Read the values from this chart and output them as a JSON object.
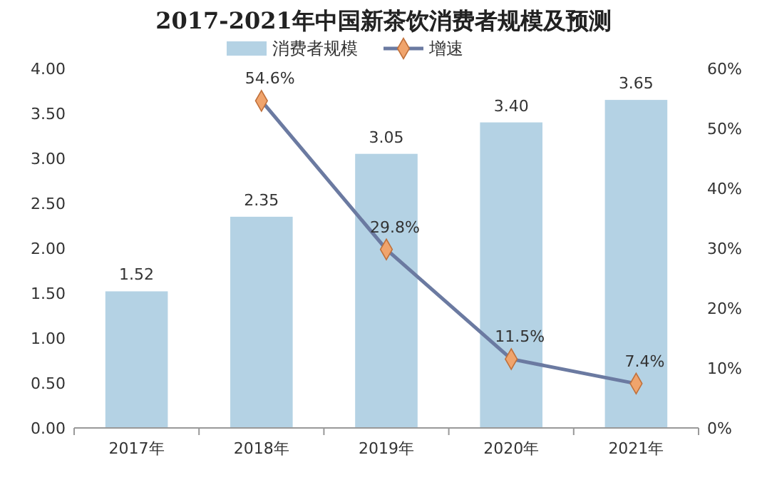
{
  "chart_data": {
    "type": "bar",
    "title": "2017-2021年中国新茶饮消费者规模及预测",
    "categories": [
      "2017年",
      "2018年",
      "2019年",
      "2020年",
      "2021年"
    ],
    "series": [
      {
        "name": "消费者规模",
        "color": "#b4d2e4",
        "values": [
          1.52,
          2.35,
          3.05,
          3.4,
          3.65
        ],
        "value_labels": [
          "1.52",
          "2.35",
          "3.05",
          "3.40",
          "3.65"
        ]
      },
      {
        "name": "增速",
        "type": "line",
        "axis": "y2",
        "color": "#6b7aa1",
        "values": [
          null,
          54.6,
          29.8,
          11.5,
          7.4
        ],
        "value_labels": [
          null,
          "54.6%",
          "29.8%",
          "11.5%",
          "7.4%"
        ]
      }
    ],
    "ylim": [
      0,
      4
    ],
    "yticks": [
      {
        "value": 0,
        "label": "0.00"
      },
      {
        "value": 0.5,
        "label": "0.50"
      },
      {
        "value": 1,
        "label": "1.00"
      },
      {
        "value": 1.5,
        "label": "1.50"
      },
      {
        "value": 2,
        "label": "2.00"
      },
      {
        "value": 2.5,
        "label": "2.50"
      },
      {
        "value": 3,
        "label": "3.00"
      },
      {
        "value": 3.5,
        "label": "3.50"
      },
      {
        "value": 4,
        "label": "4.00"
      }
    ],
    "y2lim": [
      0,
      60
    ],
    "y2ticks": [
      {
        "value": 0,
        "label": "0%"
      },
      {
        "value": 10,
        "label": "10%"
      },
      {
        "value": 20,
        "label": "20%"
      },
      {
        "value": 30,
        "label": "30%"
      },
      {
        "value": 40,
        "label": "40%"
      },
      {
        "value": 50,
        "label": "50%"
      },
      {
        "value": 60,
        "label": "60%"
      }
    ],
    "marker": "diamond",
    "legend": "top",
    "grid": false
  }
}
